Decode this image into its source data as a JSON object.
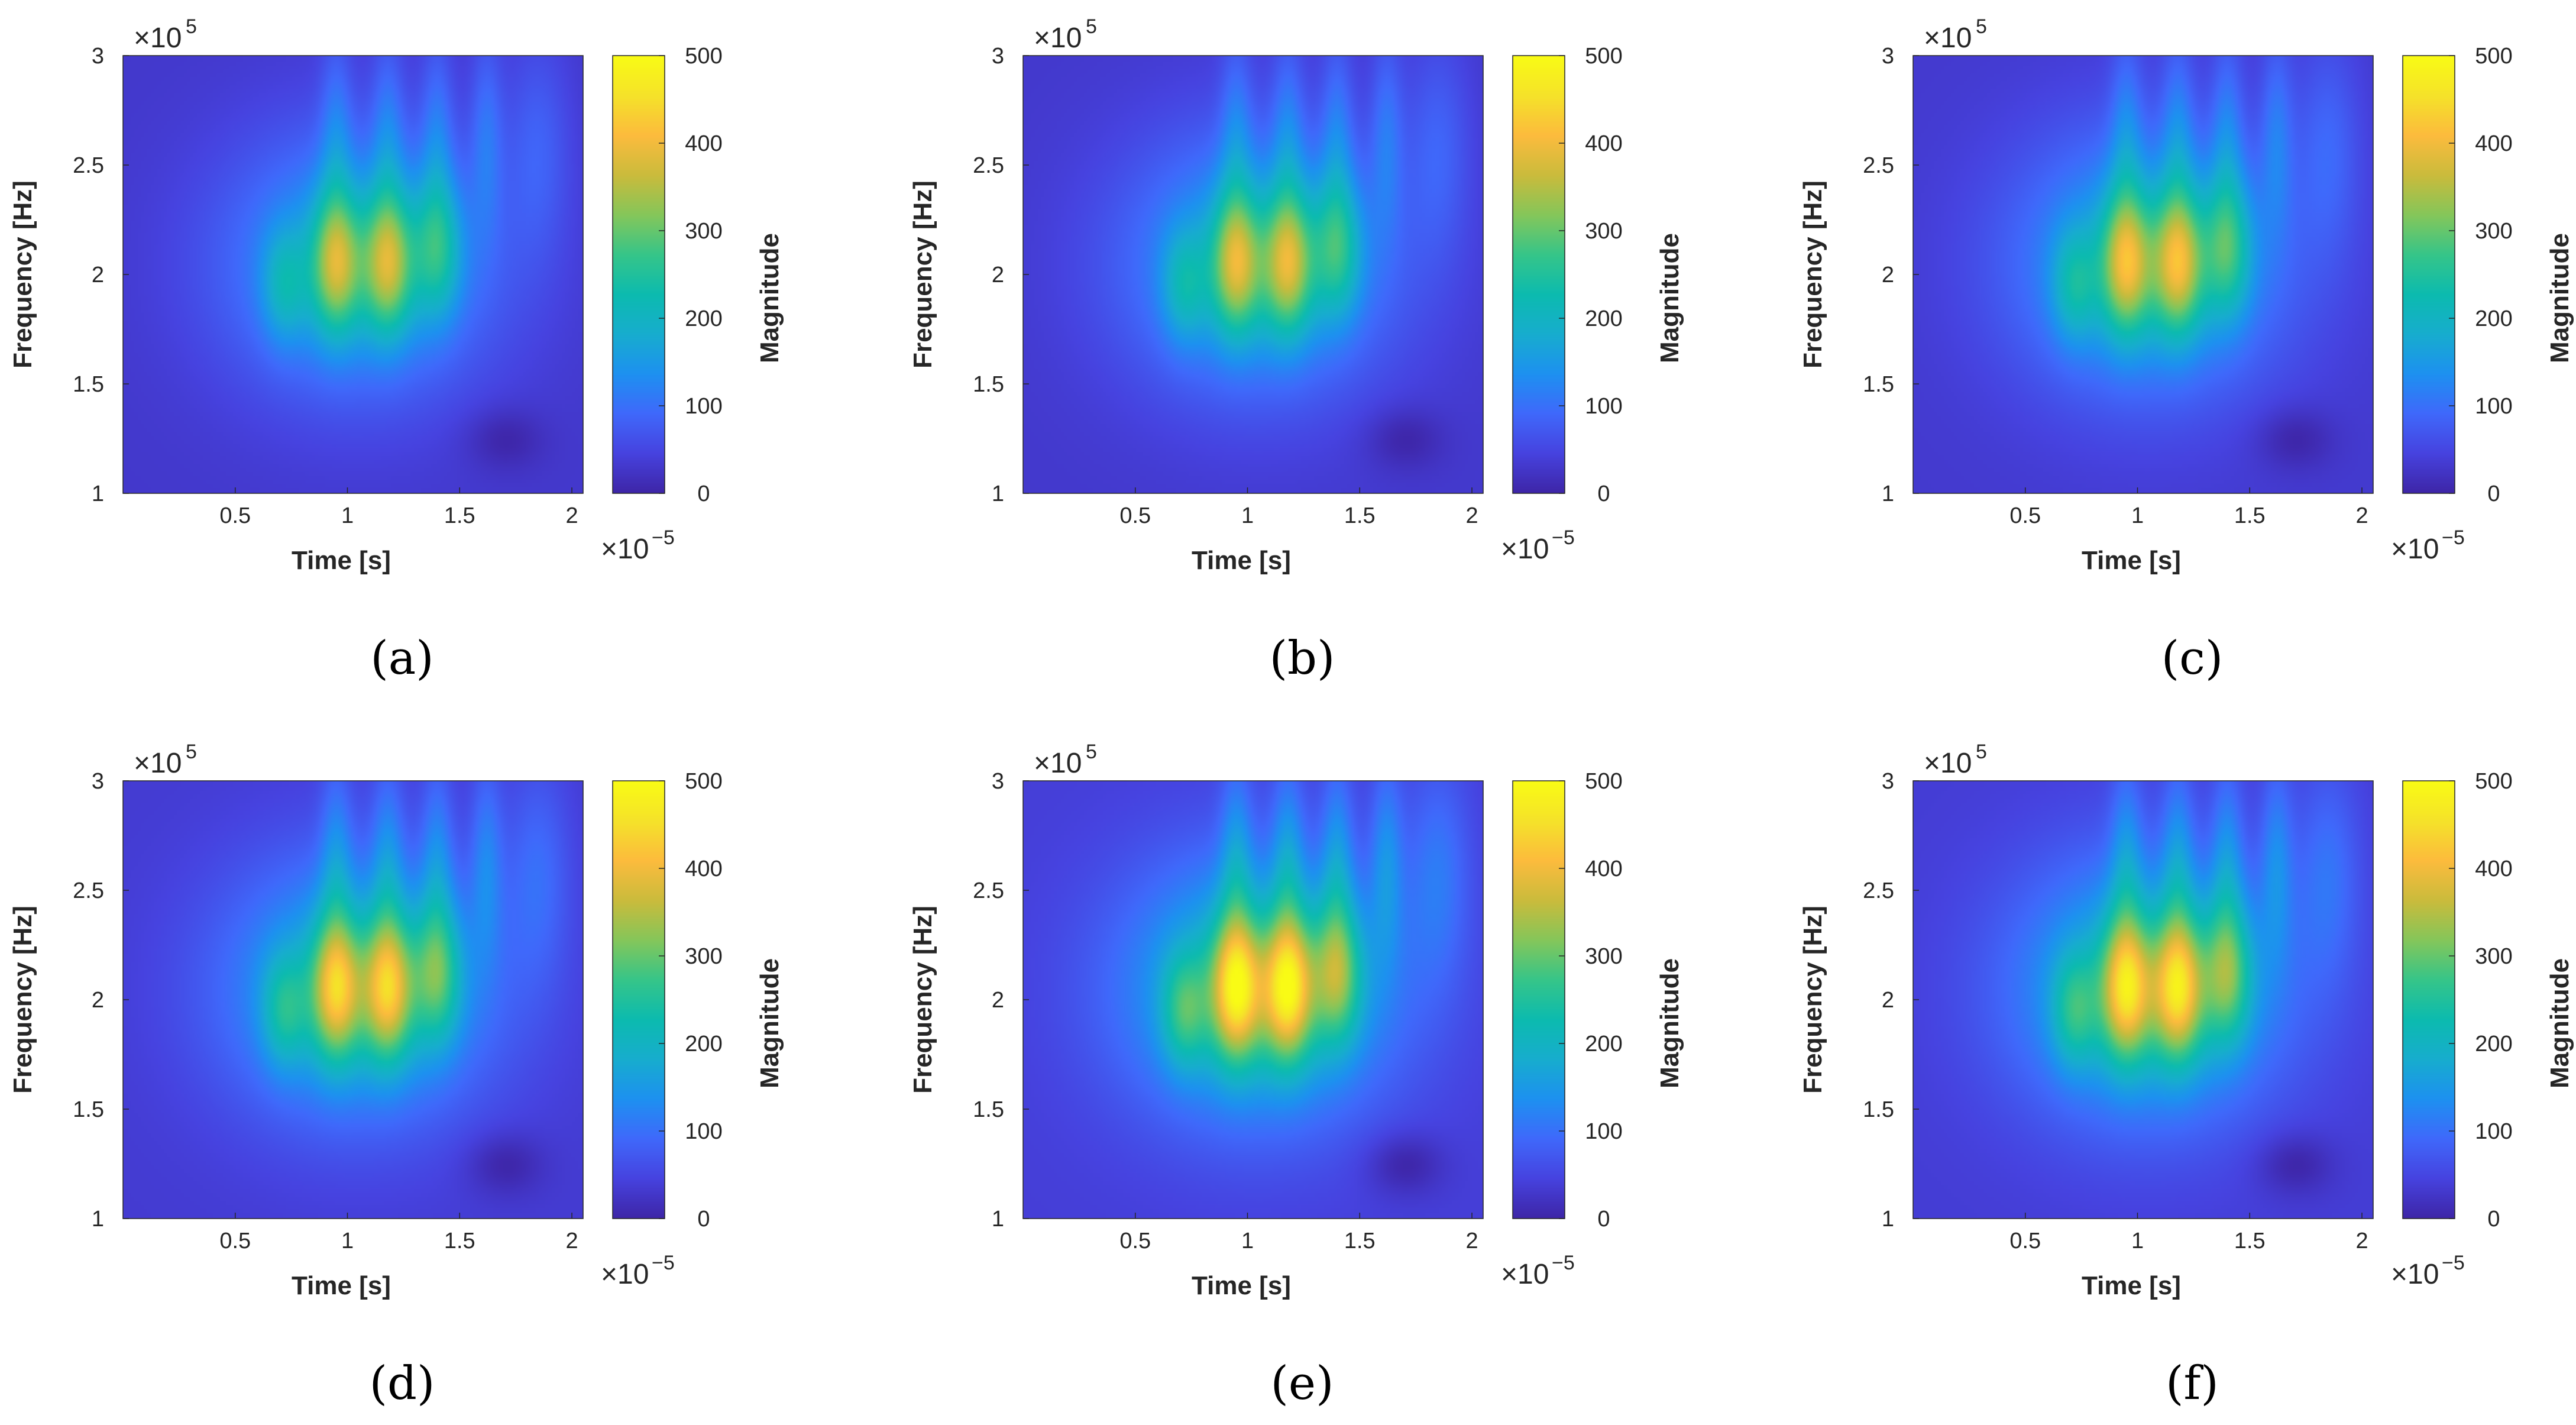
{
  "chart_data": [
    {
      "type": "heatmap",
      "panel": "a",
      "caption": "(a)",
      "peak": 0.74,
      "xlabel": "Time [s]",
      "ylabel": "Frequency [Hz]",
      "colorbar_label": "Magnitude",
      "x_ticks": [
        "0.5",
        "1",
        "1.5",
        "2"
      ],
      "y_ticks": [
        "1",
        "1.5",
        "2",
        "2.5",
        "3"
      ],
      "c_ticks": [
        "0",
        "100",
        "200",
        "300",
        "400",
        "500"
      ],
      "x_multiplier": {
        "base": "×10",
        "exp": "−5"
      },
      "y_multiplier": {
        "base": "×10",
        "exp": "5"
      },
      "xlim": [
        0,
        2.05
      ],
      "ylim": [
        1,
        3
      ],
      "clim": [
        0,
        500
      ]
    },
    {
      "type": "heatmap",
      "panel": "b",
      "caption": "(b)",
      "peak": 0.76,
      "xlabel": "Time [s]",
      "ylabel": "Frequency [Hz]",
      "colorbar_label": "Magnitude",
      "x_ticks": [
        "0.5",
        "1",
        "1.5",
        "2"
      ],
      "y_ticks": [
        "1",
        "1.5",
        "2",
        "2.5",
        "3"
      ],
      "c_ticks": [
        "0",
        "100",
        "200",
        "300",
        "400",
        "500"
      ],
      "x_multiplier": {
        "base": "×10",
        "exp": "−5"
      },
      "y_multiplier": {
        "base": "×10",
        "exp": "5"
      },
      "xlim": [
        0,
        2.05
      ],
      "ylim": [
        1,
        3
      ],
      "clim": [
        0,
        500
      ]
    },
    {
      "type": "heatmap",
      "panel": "c",
      "caption": "(c)",
      "peak": 0.8,
      "xlabel": "Time [s]",
      "ylabel": "Frequency [Hz]",
      "colorbar_label": "Magnitude",
      "x_ticks": [
        "0.5",
        "1",
        "1.5",
        "2"
      ],
      "y_ticks": [
        "1",
        "1.5",
        "2",
        "2.5",
        "3"
      ],
      "c_ticks": [
        "0",
        "100",
        "200",
        "300",
        "400",
        "500"
      ],
      "x_multiplier": {
        "base": "×10",
        "exp": "−5"
      },
      "y_multiplier": {
        "base": "×10",
        "exp": "5"
      },
      "xlim": [
        0,
        2.05
      ],
      "ylim": [
        1,
        3
      ],
      "clim": [
        0,
        500
      ]
    },
    {
      "type": "heatmap",
      "panel": "d",
      "caption": "(d)",
      "peak": 0.86,
      "xlabel": "Time [s]",
      "ylabel": "Frequency [Hz]",
      "colorbar_label": "Magnitude",
      "x_ticks": [
        "0.5",
        "1",
        "1.5",
        "2"
      ],
      "y_ticks": [
        "1",
        "1.5",
        "2",
        "2.5",
        "3"
      ],
      "c_ticks": [
        "0",
        "100",
        "200",
        "300",
        "400",
        "500"
      ],
      "x_multiplier": {
        "base": "×10",
        "exp": "−5"
      },
      "y_multiplier": {
        "base": "×10",
        "exp": "5"
      },
      "xlim": [
        0,
        2.05
      ],
      "ylim": [
        1,
        3
      ],
      "clim": [
        0,
        500
      ]
    },
    {
      "type": "heatmap",
      "panel": "e",
      "caption": "(e)",
      "peak": 0.98,
      "xlabel": "Time [s]",
      "ylabel": "Frequency [Hz]",
      "colorbar_label": "Magnitude",
      "x_ticks": [
        "0.5",
        "1",
        "1.5",
        "2"
      ],
      "y_ticks": [
        "1",
        "1.5",
        "2",
        "2.5",
        "3"
      ],
      "c_ticks": [
        "0",
        "100",
        "200",
        "300",
        "400",
        "500"
      ],
      "x_multiplier": {
        "base": "×10",
        "exp": "−5"
      },
      "y_multiplier": {
        "base": "×10",
        "exp": "5"
      },
      "xlim": [
        0,
        2.05
      ],
      "ylim": [
        1,
        3
      ],
      "clim": [
        0,
        500
      ]
    },
    {
      "type": "heatmap",
      "panel": "f",
      "caption": "(f)",
      "peak": 0.92,
      "xlabel": "Time [s]",
      "ylabel": "Frequency [Hz]",
      "colorbar_label": "Magnitude",
      "x_ticks": [
        "0.5",
        "1",
        "1.5",
        "2"
      ],
      "y_ticks": [
        "1",
        "1.5",
        "2",
        "2.5",
        "3"
      ],
      "c_ticks": [
        "0",
        "100",
        "200",
        "300",
        "400",
        "500"
      ],
      "x_multiplier": {
        "base": "×10",
        "exp": "−5"
      },
      "y_multiplier": {
        "base": "×10",
        "exp": "5"
      },
      "xlim": [
        0,
        2.05
      ],
      "ylim": [
        1,
        3
      ],
      "clim": [
        0,
        500
      ]
    }
  ],
  "colormap": {
    "name": "parula",
    "stops": [
      "#3e26a8",
      "#4643e0",
      "#3f69fb",
      "#1d91f0",
      "#17adce",
      "#0cbbaf",
      "#36c589",
      "#85c65a",
      "#cabb3c",
      "#fcbb3d",
      "#f5e22a",
      "#f9fb15"
    ]
  }
}
